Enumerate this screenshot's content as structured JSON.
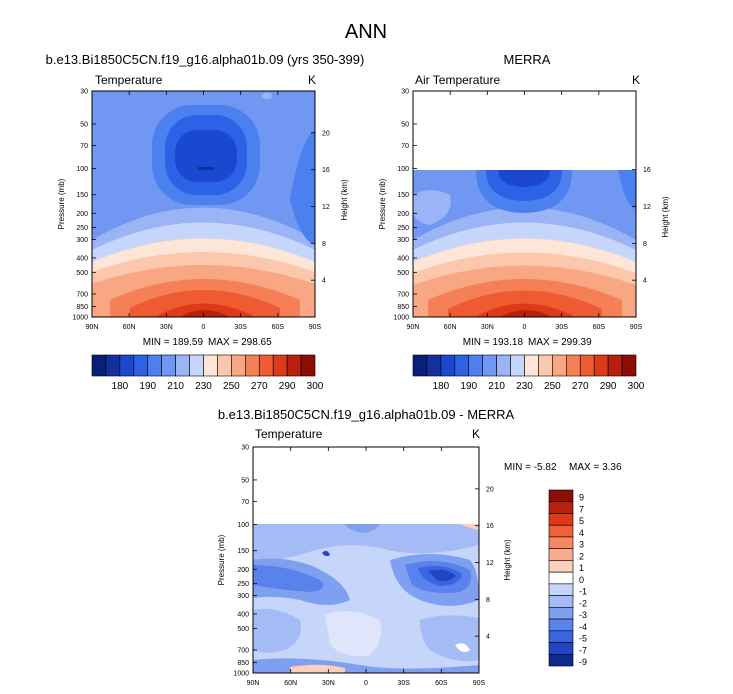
{
  "page": {
    "title": "ANN",
    "panel_top_left_title": "b.e13.Bi1850C5CN.f19_g16.alpha01b.09 (yrs 350-399)",
    "panel_top_right_title": "MERRA",
    "panel_bottom_title": "b.e13.Bi1850C5CN.f19_g16.alpha01b.09 - MERRA"
  },
  "chart_data": [
    {
      "type": "heatmap",
      "id": "model",
      "title": "Temperature",
      "units": "K",
      "ylabel": "Pressure (mb)",
      "y2label": "Height (km)",
      "x_ticks": [
        "90N",
        "60N",
        "30N",
        "0",
        "30S",
        "60S",
        "90S"
      ],
      "y_ticks": [
        "30",
        "50",
        "70",
        "100",
        "150",
        "200",
        "250",
        "300",
        "400",
        "500",
        "700",
        "850",
        "1000"
      ],
      "height_ticks": [
        "20",
        "16",
        "12",
        "8",
        "4"
      ],
      "min_label": "MIN = 189.59",
      "max_label": "MAX = 298.65",
      "colorbar_labels": [
        "180",
        "190",
        "210",
        "230",
        "250",
        "270",
        "290",
        "300"
      ],
      "colors": [
        "#0a1f7a",
        "#12309e",
        "#1a48cf",
        "#2c62e6",
        "#4c80ee",
        "#7097f2",
        "#9ab4f6",
        "#c6d5fa",
        "#fde5d7",
        "#fbc7ad",
        "#f9a683",
        "#f57f57",
        "#ee5a32",
        "#de3a1a",
        "#b71f0f",
        "#8b0d05"
      ]
    },
    {
      "type": "heatmap",
      "id": "merra",
      "title": "Air Temperature",
      "units": "K",
      "ylabel": "Pressure (mb)",
      "y2label": "Height (km)",
      "x_ticks": [
        "90N",
        "60N",
        "30N",
        "0",
        "30S",
        "60S",
        "90S"
      ],
      "y_ticks": [
        "30",
        "50",
        "70",
        "100",
        "150",
        "200",
        "250",
        "300",
        "400",
        "500",
        "700",
        "850",
        "1000"
      ],
      "height_ticks": [
        "16",
        "12",
        "8",
        "4"
      ],
      "min_label": "MIN = 193.18",
      "max_label": "MAX = 299.39",
      "colorbar_labels": [
        "180",
        "190",
        "210",
        "230",
        "250",
        "270",
        "290",
        "300"
      ]
    },
    {
      "type": "heatmap",
      "id": "diff",
      "title": "Temperature",
      "units": "K",
      "ylabel": "Pressure (mb)",
      "y2label": "Height (km)",
      "x_ticks": [
        "90N",
        "60N",
        "30N",
        "0",
        "30S",
        "60S",
        "90S"
      ],
      "y_ticks": [
        "30",
        "50",
        "70",
        "100",
        "150",
        "200",
        "250",
        "300",
        "400",
        "500",
        "700",
        "850",
        "1000"
      ],
      "height_ticks": [
        "20",
        "16",
        "12",
        "8",
        "4"
      ],
      "min_label": "MIN =  -5.82",
      "max_label": "MAX =   3.36",
      "colorbar_labels": [
        "9",
        "7",
        "5",
        "4",
        "3",
        "2",
        "1",
        "0",
        "-1",
        "-2",
        "-3",
        "-4",
        "-5",
        "-7",
        "-9"
      ],
      "colors": [
        "#8b0d05",
        "#b71f0f",
        "#de3a1a",
        "#f0603a",
        "#f58862",
        "#f9ab8d",
        "#fcd0bb",
        "#ffffff",
        "#c6d5fa",
        "#a4bbf5",
        "#7f9ff1",
        "#5a82ec",
        "#3a65e0",
        "#2245c2",
        "#0e2a8f"
      ]
    }
  ]
}
